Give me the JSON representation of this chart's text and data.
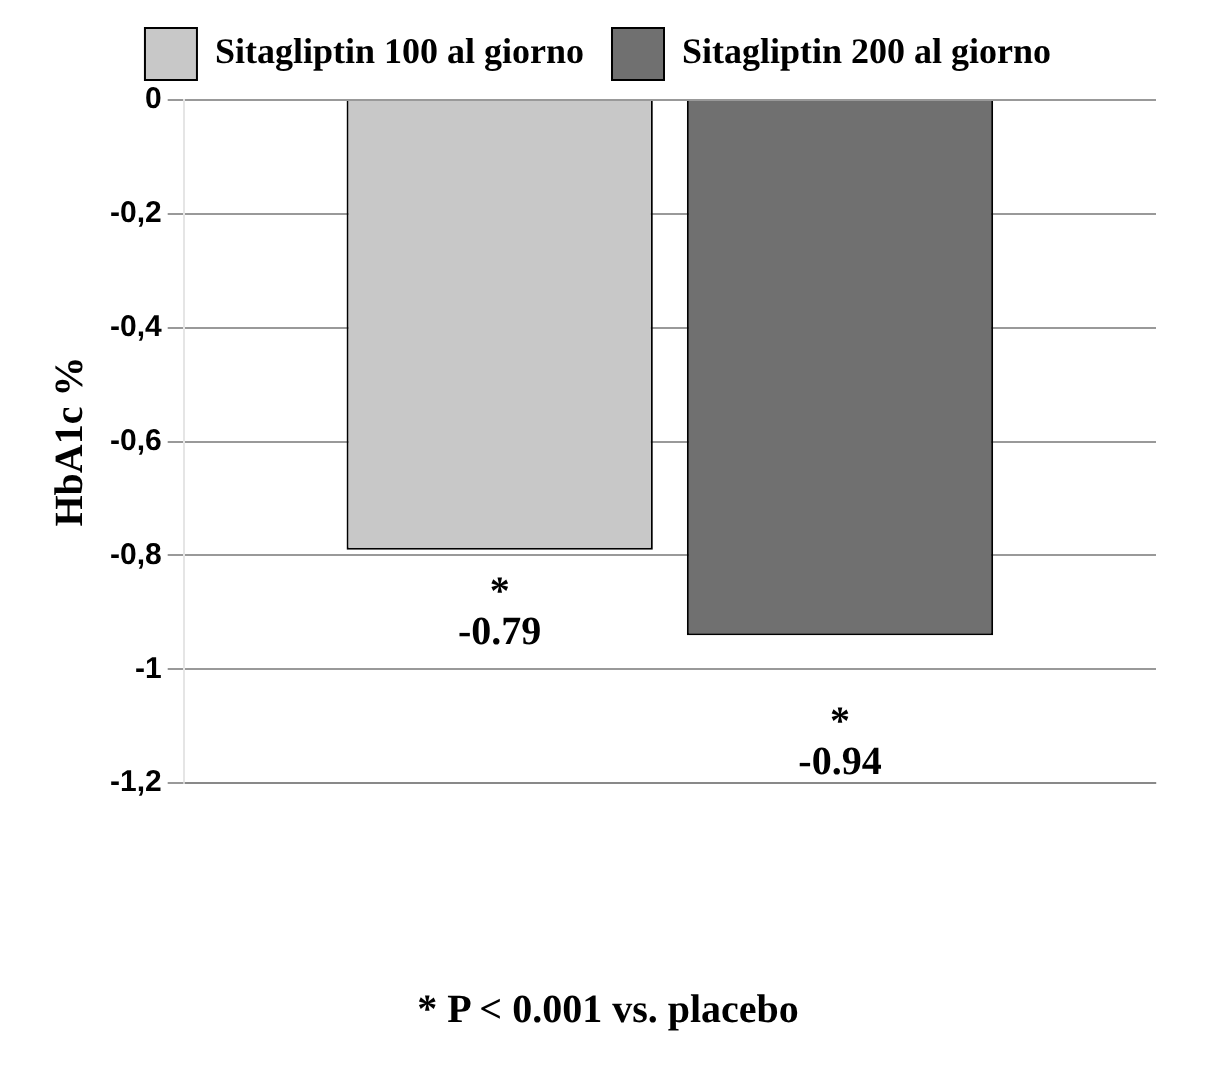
{
  "chart_data": {
    "type": "bar",
    "categories": [
      null
    ],
    "series": [
      {
        "name": "Sitagliptin 100 al giorno",
        "color": "#c8c8c8",
        "values": [
          -0.79
        ],
        "value_labels": [
          "*\n-0.79"
        ]
      },
      {
        "name": "Sitagliptin 200 al giorno",
        "color": "#707070",
        "values": [
          -0.94
        ],
        "value_labels": [
          "*\n-0.94"
        ]
      }
    ],
    "ylabel": "HbA1c %",
    "ylim": [
      -1.2,
      0
    ],
    "yticks": [
      0,
      {
        "value": -0.2,
        "label": "-0,2"
      },
      {
        "value": -0.4,
        "label": "-0,4"
      },
      {
        "value": -0.6,
        "label": "-0,6"
      },
      {
        "value": -0.8,
        "label": "-0,8"
      },
      -1,
      {
        "value": -1.2,
        "label": "-1,2"
      }
    ],
    "grid": "y",
    "legend": "top",
    "annotations": [
      "* P < 0.001 vs. placebo"
    ]
  }
}
